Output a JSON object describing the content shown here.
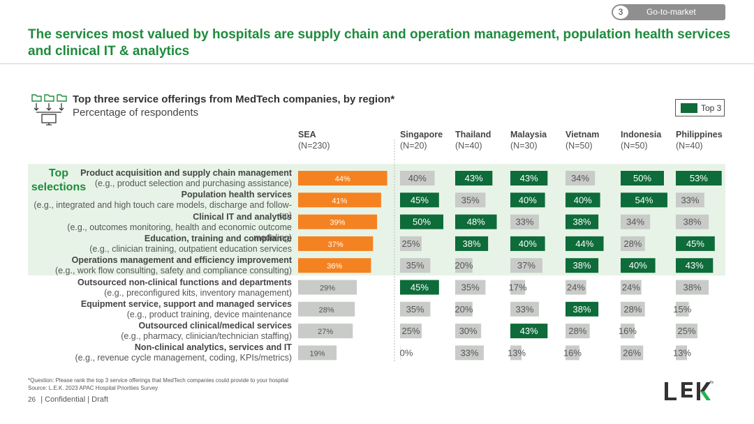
{
  "badge": {
    "number": "3",
    "label": "Go-to-market"
  },
  "title": "The services most valued by hospitals are supply chain and operation management, population health services and clinical IT & analytics",
  "subtitle": {
    "main": "Top three service offerings from MedTech companies, by region*",
    "sub": "Percentage of respondents"
  },
  "legend": {
    "label": "Top 3"
  },
  "top_selections_label": "Top selections",
  "colors": {
    "green_title": "#1e8b3c",
    "top3": "#0e6b3a",
    "sea": "#f58220",
    "grey": "#c8cbc8",
    "band": "#e7f3e7"
  },
  "columns": [
    {
      "name": "SEA",
      "n": "(N=230)"
    },
    {
      "name": "Singapore",
      "n": "(N=20)"
    },
    {
      "name": "Thailand",
      "n": "(N=40)"
    },
    {
      "name": "Malaysia",
      "n": "(N=30)"
    },
    {
      "name": "Vietnam",
      "n": "(N=50)"
    },
    {
      "name": "Indonesia",
      "n": "(N=50)"
    },
    {
      "name": "Philippines",
      "n": "(N=40)"
    }
  ],
  "rows": [
    {
      "main": "Product acquisition and supply chain management",
      "sub": "(e.g., product selection and purchasing assistance)"
    },
    {
      "main": "Population health services",
      "sub": "(e.g., integrated and high touch care models, discharge and follow-up)"
    },
    {
      "main": "Clinical IT and analytics",
      "sub": "(e.g., outcomes monitoring, health and economic outcome modeling)"
    },
    {
      "main": "Education, training and compliance",
      "sub": "(e.g., clinician training, outpatient education services"
    },
    {
      "main": "Operations management and efficiency improvement",
      "sub": "(e.g., work flow consulting, safety and compliance consulting)"
    },
    {
      "main": "Outsourced non-clinical functions and departments",
      "sub": "(e.g., preconfigured kits, inventory management)"
    },
    {
      "main": "Equipment service, support and managed services",
      "sub": "(e.g., product training, device maintenance"
    },
    {
      "main": "Outsourced clinical/medical services",
      "sub": "(e.g., pharmacy, clinician/technician staffing)"
    },
    {
      "main": "Non-clinical analytics, services and IT",
      "sub": "(e.g., revenue cycle management, coding, KPIs/metrics)"
    }
  ],
  "chart_data": {
    "type": "bar",
    "title": "Top three service offerings from MedTech companies, by region*",
    "ylabel": "Percentage of respondents",
    "categories": [
      "Product acquisition and supply chain management",
      "Population health services",
      "Clinical IT and analytics",
      "Education, training and compliance",
      "Operations management and efficiency improvement",
      "Outsourced non-clinical functions and departments",
      "Equipment service, support and managed services",
      "Outsourced clinical/medical services",
      "Non-clinical analytics, services and IT"
    ],
    "series": [
      {
        "name": "SEA",
        "values": [
          44,
          41,
          39,
          37,
          36,
          29,
          28,
          27,
          19
        ],
        "top3": [
          true,
          true,
          true,
          true,
          true,
          false,
          false,
          false,
          false
        ]
      },
      {
        "name": "Singapore",
        "values": [
          40,
          45,
          50,
          25,
          35,
          45,
          35,
          25,
          0
        ],
        "top3": [
          false,
          true,
          true,
          false,
          false,
          true,
          false,
          false,
          false
        ]
      },
      {
        "name": "Thailand",
        "values": [
          43,
          35,
          48,
          38,
          20,
          35,
          20,
          30,
          33
        ],
        "top3": [
          true,
          false,
          true,
          true,
          false,
          false,
          false,
          false,
          false
        ]
      },
      {
        "name": "Malaysia",
        "values": [
          43,
          40,
          33,
          40,
          37,
          17,
          33,
          43,
          13
        ],
        "top3": [
          true,
          true,
          false,
          true,
          false,
          false,
          false,
          true,
          false
        ]
      },
      {
        "name": "Vietnam",
        "values": [
          34,
          40,
          38,
          44,
          38,
          24,
          38,
          28,
          16
        ],
        "top3": [
          false,
          true,
          true,
          true,
          true,
          false,
          true,
          false,
          false
        ]
      },
      {
        "name": "Indonesia",
        "values": [
          50,
          54,
          34,
          28,
          40,
          24,
          28,
          16,
          26
        ],
        "top3": [
          true,
          true,
          false,
          false,
          true,
          false,
          false,
          false,
          false
        ]
      },
      {
        "name": "Philippines",
        "values": [
          53,
          33,
          38,
          45,
          43,
          38,
          15,
          25,
          13
        ],
        "top3": [
          true,
          false,
          false,
          true,
          true,
          false,
          false,
          false,
          false
        ]
      }
    ],
    "value_suffix": "%",
    "legend": "top-right",
    "grid": false
  },
  "footnote": "*Question: Please rank the top 3 service offerings that MedTech companies could provide to your hospital",
  "source": "Source: L.E.K. 2023 APAC Hospital Priorities Survey",
  "footer": {
    "page": "26",
    "text": "| Confidential | Draft"
  },
  "logo": "LEK"
}
